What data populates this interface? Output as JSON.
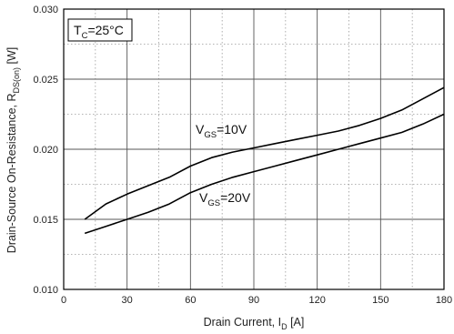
{
  "chart_data": {
    "type": "line",
    "xlabel": {
      "main": "Drain Current, I",
      "sub": "D",
      "tail": " [A]"
    },
    "ylabel": {
      "main": "Drain-Source On-Resistance, R",
      "sub": "DS(on)",
      "tail": " [W]"
    },
    "xlim": [
      0,
      180
    ],
    "ylim": [
      0.01,
      0.03
    ],
    "xticks": [
      "0",
      "30",
      "60",
      "90",
      "120",
      "150",
      "180"
    ],
    "yticks": [
      "0.010",
      "0.015",
      "0.020",
      "0.025",
      "0.030"
    ],
    "grid": true,
    "condition_box": {
      "main": "T",
      "sub": "C",
      "tail": "=25°C"
    },
    "series": [
      {
        "name": "VGS=10V",
        "label": {
          "main": "V",
          "sub": "GS",
          "tail": "=10V"
        },
        "x": [
          10,
          20,
          30,
          40,
          50,
          60,
          70,
          80,
          90,
          100,
          110,
          120,
          130,
          140,
          150,
          160,
          170,
          180
        ],
        "y": [
          0.015,
          0.0161,
          0.0168,
          0.0174,
          0.018,
          0.0188,
          0.0194,
          0.0198,
          0.0201,
          0.0204,
          0.0207,
          0.021,
          0.0213,
          0.0217,
          0.0222,
          0.0228,
          0.0236,
          0.0244
        ]
      },
      {
        "name": "VGS=20V",
        "label": {
          "main": "V",
          "sub": "GS",
          "tail": "=20V"
        },
        "x": [
          10,
          20,
          30,
          40,
          50,
          60,
          70,
          80,
          90,
          100,
          110,
          120,
          130,
          140,
          150,
          160,
          170,
          180
        ],
        "y": [
          0.014,
          0.0145,
          0.015,
          0.0155,
          0.0161,
          0.0169,
          0.0175,
          0.018,
          0.0184,
          0.0188,
          0.0192,
          0.0196,
          0.02,
          0.0204,
          0.0208,
          0.0212,
          0.0218,
          0.0225
        ]
      }
    ]
  }
}
